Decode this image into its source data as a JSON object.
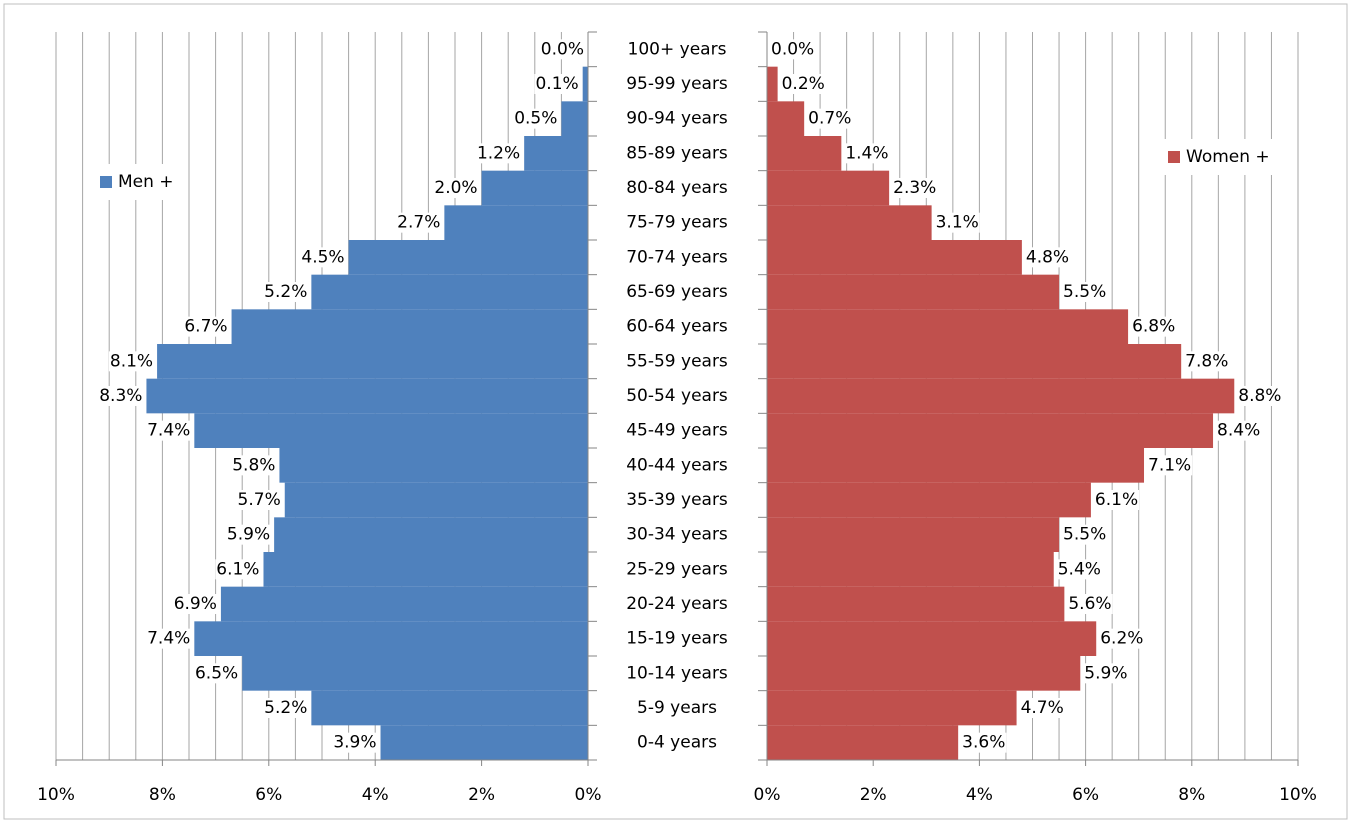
{
  "chart_data": {
    "type": "population_pyramid",
    "categories": [
      "100+ years",
      "95-99 years",
      "90-94 years",
      "85-89 years",
      "80-84 years",
      "75-79 years",
      "70-74 years",
      "65-69 years",
      "60-64 years",
      "55-59 years",
      "50-54 years",
      "45-49 years",
      "40-44 years",
      "35-39 years",
      "30-34 years",
      "25-29 years",
      "20-24 years",
      "15-19 years",
      "10-14 years",
      "5-9 years",
      "0-4 years"
    ],
    "series": [
      {
        "name": "Men +",
        "color": "#4f81bd",
        "legend": "left",
        "values": [
          0.0,
          0.1,
          0.5,
          1.2,
          2.0,
          2.7,
          4.5,
          5.2,
          6.7,
          8.1,
          8.3,
          7.4,
          5.8,
          5.7,
          5.9,
          6.1,
          6.9,
          7.4,
          6.5,
          5.2,
          3.9
        ],
        "value_labels": [
          "0.0%",
          "0.1%",
          "0.5%",
          "1.2%",
          "2.0%",
          "2.7%",
          "4.5%",
          "5.2%",
          "6.7%",
          "8.1%",
          "8.3%",
          "7.4%",
          "5.8%",
          "5.7%",
          "5.9%",
          "6.1%",
          "6.9%",
          "7.4%",
          "6.5%",
          "5.2%",
          "3.9%"
        ]
      },
      {
        "name": "Women +",
        "color": "#c0504d",
        "legend": "right",
        "values": [
          0.0,
          0.2,
          0.7,
          1.4,
          2.3,
          3.1,
          4.8,
          5.5,
          6.8,
          7.8,
          8.8,
          8.4,
          7.1,
          6.1,
          5.5,
          5.4,
          5.6,
          6.2,
          5.9,
          4.7,
          3.6
        ],
        "value_labels": [
          "0.0%",
          "0.2%",
          "0.7%",
          "1.4%",
          "2.3%",
          "3.1%",
          "4.8%",
          "5.5%",
          "6.8%",
          "7.8%",
          "8.8%",
          "8.4%",
          "7.1%",
          "6.1%",
          "5.5%",
          "5.4%",
          "5.6%",
          "6.2%",
          "5.9%",
          "4.7%",
          "3.6%"
        ]
      }
    ],
    "xlim": [
      0,
      10
    ],
    "xticks": [
      {
        "value": 0,
        "label": "0%"
      },
      {
        "value": 2,
        "label": "2%"
      },
      {
        "value": 4,
        "label": "4%"
      },
      {
        "value": 6,
        "label": "6%"
      },
      {
        "value": 8,
        "label": "8%"
      },
      {
        "value": 10,
        "label": "10%"
      }
    ],
    "minor_xticks": [
      0.5,
      1,
      1.5,
      2,
      2.5,
      3,
      3.5,
      4,
      4.5,
      5,
      5.5,
      6,
      6.5,
      7,
      7.5,
      8,
      8.5,
      9,
      9.5,
      10
    ],
    "grid": true
  }
}
